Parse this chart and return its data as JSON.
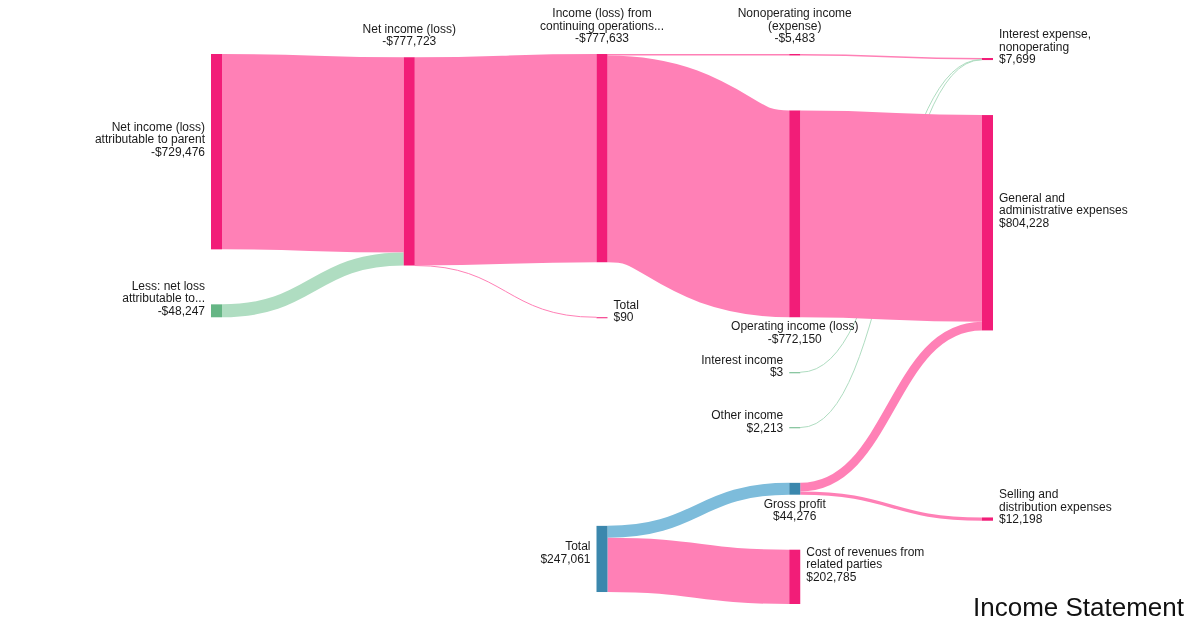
{
  "chart_data": {
    "type": "other",
    "title": "Income Statement",
    "categories": [
      "Net income (loss)\nattributable to parent",
      "Less: net loss\nattributable to...",
      "Net income (loss)",
      "Income (loss) from\ncontinuing operations...",
      "Total",
      "Total",
      "Nonoperating income\n(expense)",
      "Operating income (loss)",
      "Interest income",
      "Other income",
      "Gross profit",
      "Cost of revenues from\nrelated parties",
      "Interest expense,\nnonoperating",
      "General and\nadministrative expenses",
      "Selling and\ndistribution expenses"
    ],
    "values": [
      -729476,
      -48247,
      -777723,
      -777633,
      90,
      247061,
      -5483,
      -772150,
      3,
      2213,
      44276,
      202785,
      7699,
      804228,
      12198
    ],
    "value_labels": [
      "-$729,476",
      "-$48,247",
      "-$777,723",
      "-$777,633",
      "$90",
      "$247,061",
      "-$5,483",
      "-$772,150",
      "$3",
      "$2,213",
      "$44,276",
      "$202,785",
      "$7,699",
      "$804,228",
      "$12,198"
    ],
    "colors": [
      "#f21d78",
      "#66b685",
      "#f21d78",
      "#f21d78",
      "#f21d78",
      "#3b87ad",
      "#f21d78",
      "#f21d78",
      "#66b685",
      "#66b685",
      "#3b87ad",
      "#f21d78",
      "#f21d78",
      "#f21d78",
      "#f21d78"
    ]
  }
}
